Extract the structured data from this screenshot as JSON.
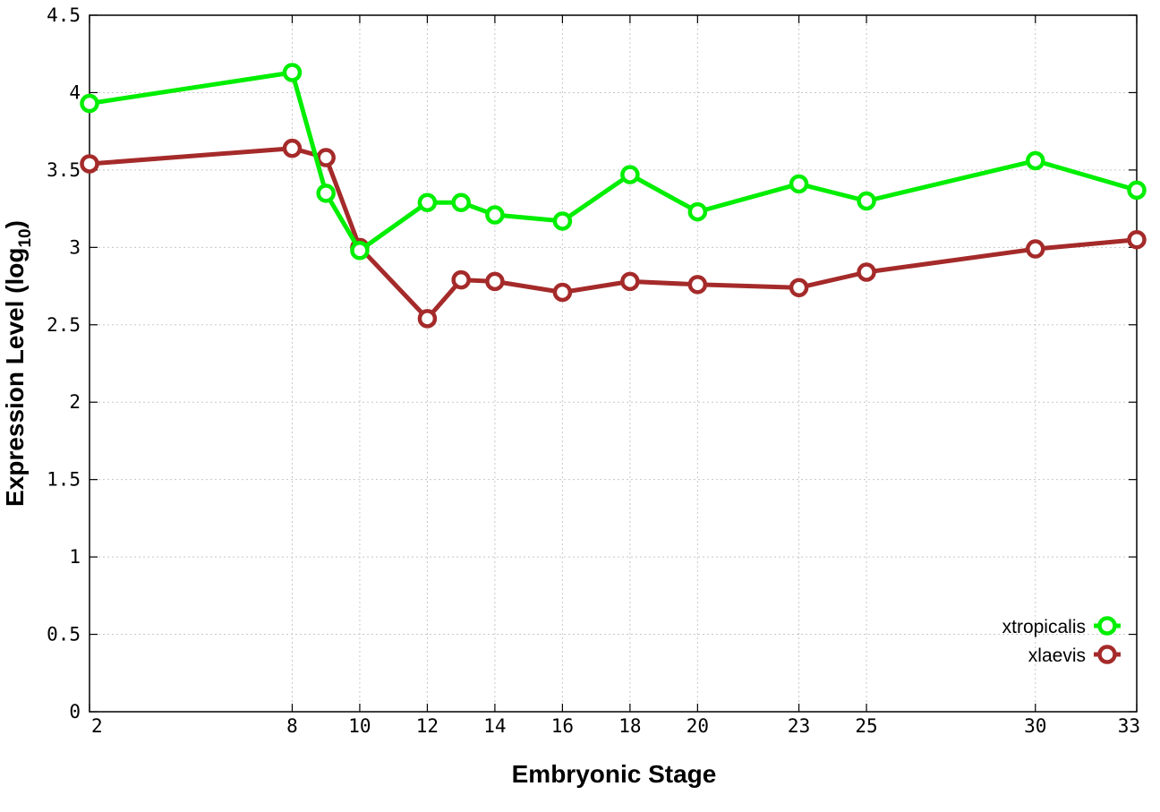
{
  "chart_data": {
    "type": "line",
    "title": "",
    "xlabel": "Embryonic Stage",
    "ylabel": "Expression Level (log",
    "ylabel_sub": "10",
    "ylabel_close": ")",
    "x_ticks": [
      "2",
      "8",
      "10",
      "12",
      "14",
      "16",
      "18",
      "20",
      "23",
      "25",
      "30",
      "33"
    ],
    "y_ticks": [
      "0",
      "0.5",
      "1",
      "1.5",
      "2",
      "2.5",
      "3",
      "3.5",
      "4",
      "4.5"
    ],
    "xlim": [
      2,
      33
    ],
    "ylim": [
      0,
      4.5
    ],
    "grid": true,
    "legend_position": "bottom-right",
    "series": [
      {
        "name": "xtropicalis",
        "color": "#00ee00",
        "x": [
          2,
          8,
          9,
          10,
          12,
          13,
          14,
          16,
          18,
          20,
          23,
          25,
          30,
          33
        ],
        "y": [
          3.93,
          4.13,
          3.35,
          2.98,
          3.29,
          3.29,
          3.21,
          3.17,
          3.47,
          3.23,
          3.41,
          3.3,
          3.56,
          3.37
        ]
      },
      {
        "name": "xlaevis",
        "color": "#a52a2a",
        "x": [
          2,
          8,
          9,
          10,
          12,
          13,
          14,
          16,
          18,
          20,
          23,
          25,
          30,
          33
        ],
        "y": [
          3.54,
          3.64,
          3.58,
          3.0,
          2.54,
          2.79,
          2.78,
          2.71,
          2.78,
          2.76,
          2.74,
          2.84,
          2.99,
          3.05
        ]
      }
    ]
  }
}
